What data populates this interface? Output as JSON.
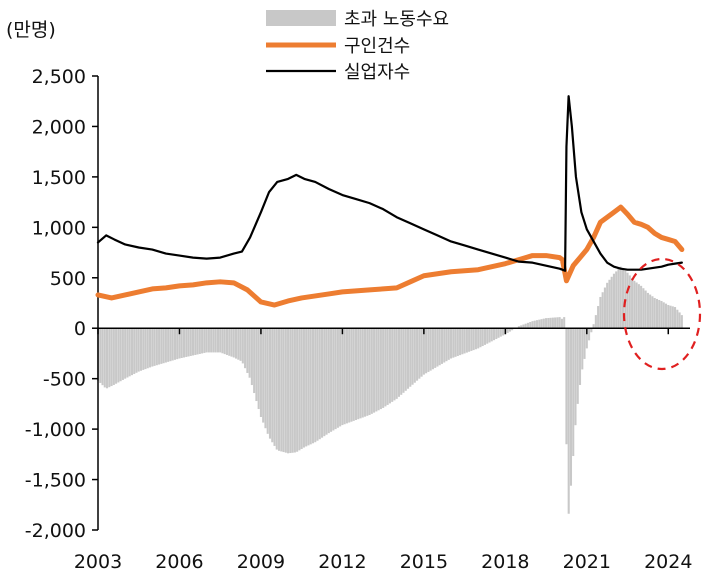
{
  "chart_data": {
    "type": "line",
    "title": "",
    "unit_label": "(만명)",
    "xlabel": "",
    "ylabel": "",
    "xlim": [
      2003,
      2024.8
    ],
    "ylim": [
      -2000,
      2500
    ],
    "y_ticks": [
      -2000,
      -1500,
      -1000,
      -500,
      0,
      500,
      1000,
      1500,
      2000,
      2500
    ],
    "y_tick_labels": [
      "-2,000",
      "-1,500",
      "-1,000",
      "-500",
      "0",
      "500",
      "1,000",
      "1,500",
      "2,000",
      "2,500"
    ],
    "x_ticks": [
      2003,
      2006,
      2009,
      2012,
      2015,
      2018,
      2021,
      2024
    ],
    "x_tick_labels": [
      "2003",
      "2006",
      "2009",
      "2012",
      "2015",
      "2018",
      "2021",
      "2024"
    ],
    "legend": [
      {
        "label": "초과 노동수요",
        "kind": "bar",
        "color": "#c8c8c8"
      },
      {
        "label": "구인건수",
        "kind": "line",
        "color": "#ed7d31"
      },
      {
        "label": "실업자수",
        "kind": "line",
        "color": "#000000"
      }
    ],
    "series": [
      {
        "name": "구인건수",
        "kind": "line",
        "color": "#ed7d31",
        "x": [
          2003.0,
          2003.5,
          2004.0,
          2004.5,
          2005.0,
          2005.5,
          2006.0,
          2006.5,
          2007.0,
          2007.5,
          2008.0,
          2008.5,
          2009.0,
          2009.5,
          2010.0,
          2010.5,
          2011.0,
          2011.5,
          2012.0,
          2012.5,
          2013.0,
          2013.5,
          2014.0,
          2014.5,
          2015.0,
          2015.5,
          2016.0,
          2016.5,
          2017.0,
          2017.5,
          2018.0,
          2018.5,
          2019.0,
          2019.5,
          2020.0,
          2020.1,
          2020.25,
          2020.5,
          2020.75,
          2021.0,
          2021.25,
          2021.5,
          2021.75,
          2022.0,
          2022.25,
          2022.5,
          2022.75,
          2023.0,
          2023.25,
          2023.5,
          2023.75,
          2024.0,
          2024.25,
          2024.5
        ],
        "values": [
          330,
          300,
          330,
          360,
          390,
          400,
          420,
          430,
          450,
          460,
          450,
          380,
          260,
          230,
          270,
          300,
          320,
          340,
          360,
          370,
          380,
          390,
          400,
          460,
          520,
          540,
          560,
          570,
          580,
          610,
          640,
          680,
          720,
          720,
          700,
          680,
          470,
          620,
          700,
          780,
          900,
          1050,
          1100,
          1150,
          1200,
          1130,
          1050,
          1030,
          1000,
          940,
          900,
          880,
          860,
          780
        ]
      },
      {
        "name": "실업자수",
        "kind": "line",
        "color": "#000000",
        "x": [
          2003.0,
          2003.3,
          2003.6,
          2004.0,
          2004.5,
          2005.0,
          2005.5,
          2006.0,
          2006.5,
          2007.0,
          2007.5,
          2008.0,
          2008.3,
          2008.6,
          2009.0,
          2009.3,
          2009.6,
          2010.0,
          2010.3,
          2010.6,
          2011.0,
          2011.5,
          2012.0,
          2012.5,
          2013.0,
          2013.5,
          2014.0,
          2014.5,
          2015.0,
          2015.5,
          2016.0,
          2016.5,
          2017.0,
          2017.5,
          2018.0,
          2018.5,
          2019.0,
          2019.5,
          2020.0,
          2020.1,
          2020.2,
          2020.25,
          2020.33,
          2020.45,
          2020.6,
          2020.8,
          2021.0,
          2021.25,
          2021.5,
          2021.75,
          2022.0,
          2022.25,
          2022.5,
          2022.75,
          2023.0,
          2023.25,
          2023.5,
          2023.75,
          2024.0,
          2024.25,
          2024.5
        ],
        "values": [
          850,
          920,
          880,
          830,
          800,
          780,
          740,
          720,
          700,
          690,
          700,
          740,
          760,
          900,
          1150,
          1350,
          1450,
          1480,
          1520,
          1480,
          1450,
          1380,
          1320,
          1280,
          1240,
          1180,
          1100,
          1040,
          980,
          920,
          860,
          820,
          780,
          740,
          700,
          660,
          650,
          620,
          590,
          580,
          570,
          1800,
          2300,
          2000,
          1500,
          1150,
          980,
          860,
          740,
          650,
          610,
          590,
          580,
          580,
          580,
          590,
          600,
          610,
          630,
          640,
          650
        ]
      },
      {
        "name": "초과 노동수요",
        "kind": "bar",
        "color": "#c8c8c8",
        "x": [
          2003.0,
          2003.3,
          2003.6,
          2004.0,
          2004.5,
          2005.0,
          2005.5,
          2006.0,
          2006.5,
          2007.0,
          2007.5,
          2008.0,
          2008.3,
          2008.6,
          2009.0,
          2009.3,
          2009.6,
          2010.0,
          2010.3,
          2010.6,
          2011.0,
          2011.5,
          2012.0,
          2012.5,
          2013.0,
          2013.5,
          2014.0,
          2014.5,
          2015.0,
          2015.5,
          2016.0,
          2016.5,
          2017.0,
          2017.5,
          2018.0,
          2018.5,
          2019.0,
          2019.5,
          2020.0,
          2020.1,
          2020.2,
          2020.25,
          2020.33,
          2020.45,
          2020.6,
          2020.8,
          2021.0,
          2021.25,
          2021.5,
          2021.75,
          2022.0,
          2022.25,
          2022.5,
          2022.75,
          2023.0,
          2023.25,
          2023.5,
          2023.75,
          2024.0,
          2024.25,
          2024.5
        ],
        "values": [
          -520,
          -600,
          -560,
          -500,
          -430,
          -380,
          -340,
          -300,
          -270,
          -240,
          -240,
          -290,
          -330,
          -500,
          -880,
          -1080,
          -1210,
          -1240,
          -1230,
          -1180,
          -1130,
          -1040,
          -960,
          -910,
          -860,
          -790,
          -700,
          -580,
          -460,
          -380,
          -300,
          -250,
          -200,
          -130,
          -60,
          20,
          70,
          100,
          110,
          90,
          120,
          -1150,
          -1850,
          -1450,
          -900,
          -450,
          -200,
          40,
          310,
          450,
          540,
          610,
          550,
          470,
          420,
          350,
          300,
          270,
          230,
          210,
          130
        ]
      }
    ],
    "annotations": [
      {
        "type": "dashed-ellipse",
        "color": "#e02020",
        "target": "2023-2024 excess labor demand"
      }
    ]
  }
}
